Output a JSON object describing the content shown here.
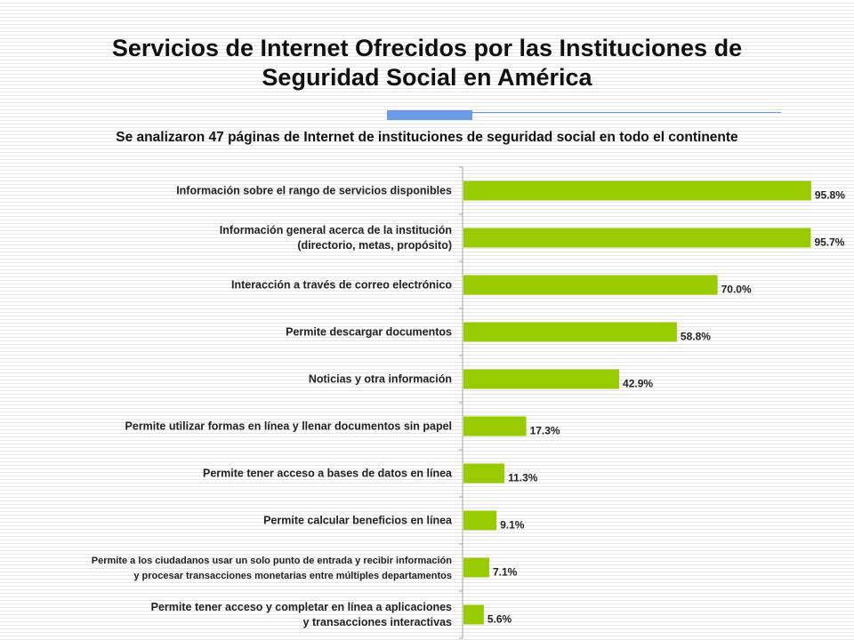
{
  "header": {
    "title_line1": "Servicios de Internet Ofrecidos por las Instituciones de",
    "title_line2": "Seguridad Social en América",
    "subtitle": "Se analizaron 47 páginas de Internet de instituciones de seguridad social en todo el continente"
  },
  "colors": {
    "bar": "#99cc00",
    "accent_rule": "#6b9be6",
    "axis": "#a6a6a6"
  },
  "chart_data": {
    "type": "bar",
    "orientation": "horizontal",
    "title": "Servicios de Internet Ofrecidos por las Instituciones de Seguridad Social en América",
    "xlim": [
      0,
      100
    ],
    "grid": false,
    "categories": [
      [
        "Información sobre el rango de servicios disponibles"
      ],
      [
        "Información general acerca de la institución",
        "(directorio, metas, propósito)"
      ],
      [
        "Interacción a través de correo electrónico"
      ],
      [
        "Permite descargar documentos"
      ],
      [
        "Noticias y otra información"
      ],
      [
        "Permite utilizar formas en línea y llenar documentos sin papel"
      ],
      [
        "Permite tener acceso a bases de datos en línea"
      ],
      [
        "Permite calcular beneficios en línea"
      ],
      [
        "Permite a los ciudadanos usar un solo punto de entrada y recibir información",
        "y  procesar transacciones  monetarias  entre múltiples departamentos"
      ],
      [
        "Permite tener acceso y completar en línea a aplicaciones",
        "y transacciones interactivas"
      ]
    ],
    "values": [
      95.8,
      95.7,
      70.0,
      58.8,
      42.9,
      17.3,
      11.3,
      9.1,
      7.1,
      5.6
    ],
    "value_labels": [
      "95.8%",
      "95.7%",
      "70.0%",
      "58.8%",
      "42.9%",
      "17.3%",
      "11.3%",
      "9.1%",
      "7.1%",
      "5.6%"
    ]
  }
}
